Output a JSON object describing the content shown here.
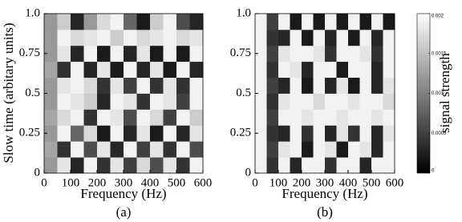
{
  "chart_data": {
    "type": "heatmap",
    "xlabel": "Frequency (Hz)",
    "ylabel": "Slow time (arbitary units)",
    "colorbar_label": "signal strength",
    "x": [
      0,
      50,
      100,
      150,
      200,
      250,
      300,
      350,
      400,
      450,
      500,
      550,
      600
    ],
    "y": [
      0,
      0.1,
      0.2,
      0.3,
      0.4,
      0.5,
      0.6,
      0.7,
      0.8,
      0.9,
      1
    ],
    "xlim": [
      0,
      600
    ],
    "ylim": [
      0,
      1
    ],
    "xticks": [
      0,
      100,
      200,
      300,
      400,
      500,
      600
    ],
    "yticks": [
      0,
      0.25,
      0.5,
      0.75,
      {
        "value": 1,
        "label": "1.0"
      }
    ],
    "clim": [
      0,
      0.002
    ],
    "cticks": [
      0,
      0.0005,
      0.001,
      0.0015,
      0.002
    ],
    "colormap": [
      "#000000",
      "#ffffff"
    ],
    "panels": [
      {
        "label": "(a)",
        "z": [
          [
            0.0012,
            0.0018,
            0.0003,
            0.0019,
            0.0004,
            0.0018,
            0.0005,
            0.0017,
            0.0006,
            0.0018,
            0.0004,
            0.0019
          ],
          [
            0.0013,
            0.0004,
            0.0019,
            0.0006,
            0.0018,
            0.0003,
            0.0019,
            0.0005,
            0.0018,
            0.0004,
            0.0019,
            0.0006
          ],
          [
            0.0012,
            0.0019,
            0.0008,
            0.0017,
            0.0002,
            0.0019,
            0.0003,
            0.0018,
            0.0002,
            0.0019,
            0.0003,
            0.0018
          ],
          [
            0.0013,
            0.0017,
            0.0019,
            0.0004,
            0.0019,
            0.0018,
            0.0006,
            0.0019,
            0.0017,
            0.0005,
            0.0019,
            0.0016
          ],
          [
            0.0012,
            0.0019,
            0.0018,
            0.0016,
            0.0003,
            0.0019,
            0.0018,
            0.0004,
            0.0019,
            0.0018,
            0.0005,
            0.0019
          ],
          [
            0.0012,
            0.0018,
            0.0019,
            0.0017,
            0.0004,
            0.0018,
            0.0005,
            0.0019,
            0.0004,
            0.0018,
            0.0004,
            0.0019
          ],
          [
            0.0013,
            0.0004,
            0.0019,
            0.0003,
            0.0018,
            0.0002,
            0.0019,
            0.0003,
            0.0018,
            0.0002,
            0.0019,
            0.0003
          ],
          [
            0.0012,
            0.0018,
            0.0003,
            0.0019,
            0.0002,
            0.0019,
            0.0003,
            0.0018,
            0.0002,
            0.0019,
            0.0002,
            0.0019
          ],
          [
            0.0012,
            0.0019,
            0.0017,
            0.0018,
            0.0019,
            0.0016,
            0.0019,
            0.0017,
            0.0018,
            0.0019,
            0.0017,
            0.0018
          ],
          [
            0.0012,
            0.0016,
            0.0003,
            0.0012,
            0.0017,
            0.0019,
            0.0008,
            0.0002,
            0.0016,
            0.0019,
            0.0006,
            0.0003
          ]
        ]
      },
      {
        "label": "(b)",
        "z": [
          [
            0.0019,
            0.0004,
            0.0019,
            0.0003,
            0.0019,
            0.0019,
            0.0004,
            0.0019,
            0.0019,
            0.0003,
            0.0019,
            0.0019
          ],
          [
            0.0019,
            0.0005,
            0.0018,
            0.0019,
            0.0002,
            0.0019,
            0.0018,
            0.0002,
            0.0019,
            0.0018,
            0.0003,
            0.0019
          ],
          [
            0.0019,
            0.0004,
            0.0003,
            0.0019,
            0.0004,
            0.0019,
            0.0003,
            0.0018,
            0.0004,
            0.0019,
            0.0003,
            0.0018
          ],
          [
            0.0019,
            0.0005,
            0.0019,
            0.0019,
            0.0018,
            0.0019,
            0.0019,
            0.0018,
            0.0019,
            0.0019,
            0.0018,
            0.0019
          ],
          [
            0.0019,
            0.0004,
            0.0018,
            0.0019,
            0.0019,
            0.0017,
            0.0019,
            0.0019,
            0.0018,
            0.0019,
            0.0019,
            0.0017
          ],
          [
            0.0019,
            0.0005,
            0.0003,
            0.0019,
            0.0002,
            0.0019,
            0.0003,
            0.0018,
            0.0002,
            0.0019,
            0.0003,
            0.0018
          ],
          [
            0.0019,
            0.0004,
            0.0019,
            0.0018,
            0.0003,
            0.0019,
            0.0019,
            0.0002,
            0.0019,
            0.0019,
            0.0003,
            0.0019
          ],
          [
            0.0019,
            0.0005,
            0.0018,
            0.0019,
            0.0019,
            0.0018,
            0.0004,
            0.0019,
            0.0019,
            0.0018,
            0.0004,
            0.0019
          ],
          [
            0.0019,
            0.0004,
            0.0003,
            0.0019,
            0.0002,
            0.0019,
            0.0003,
            0.0019,
            0.0002,
            0.0019,
            0.0003,
            0.0019
          ],
          [
            0.0019,
            0.0005,
            0.0019,
            0.0002,
            0.0019,
            0.0002,
            0.0019,
            0.0002,
            0.0019,
            0.0002,
            0.0019,
            0.0002
          ]
        ]
      }
    ]
  }
}
